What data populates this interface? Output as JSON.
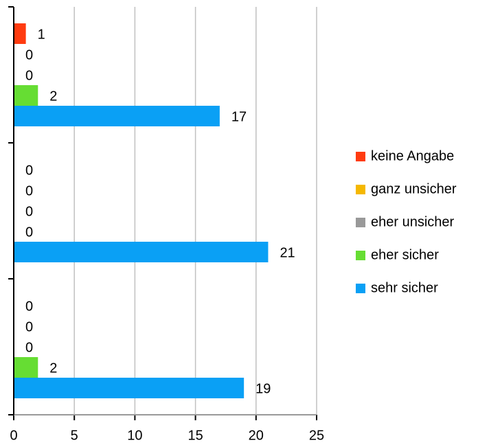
{
  "chart_data": {
    "type": "hbar",
    "categories": [
      null,
      null,
      null
    ],
    "series": [
      {
        "name": "keine Angabe",
        "color": "#ff3b10",
        "values": [
          1,
          0,
          0
        ]
      },
      {
        "name": "ganz unsicher",
        "color": "#f5b800",
        "values": [
          0,
          0,
          0
        ]
      },
      {
        "name": "eher unsicher",
        "color": "#999999",
        "values": [
          0,
          0,
          0
        ]
      },
      {
        "name": "eher sicher",
        "color": "#66dd33",
        "values": [
          2,
          0,
          2
        ]
      },
      {
        "name": "sehr sicher",
        "color": "#0aa0f5",
        "values": [
          17,
          21,
          19
        ]
      }
    ],
    "xlim": [
      0,
      25
    ],
    "xticks": [
      0,
      5,
      10,
      15,
      20,
      25
    ],
    "grid": true,
    "legend": "right"
  }
}
